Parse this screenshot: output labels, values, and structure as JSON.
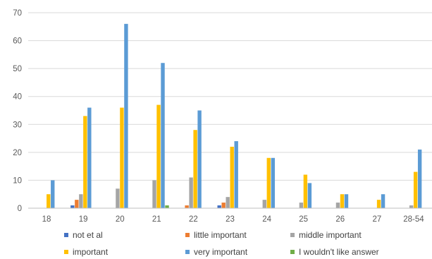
{
  "chart_data": {
    "type": "bar",
    "title": "",
    "xlabel": "",
    "ylabel": "",
    "ylim": [
      0,
      70
    ],
    "yticks": [
      0,
      10,
      20,
      30,
      40,
      50,
      60,
      70
    ],
    "grid": "horizontal",
    "legend_position": "bottom",
    "categories": [
      "18",
      "19",
      "20",
      "21",
      "22",
      "23",
      "24",
      "25",
      "26",
      "27",
      "28-54"
    ],
    "series": [
      {
        "name": "not et al",
        "color": "#4472C4",
        "values": [
          0,
          1,
          0,
          0,
          0,
          1,
          0,
          0,
          0,
          0,
          0
        ]
      },
      {
        "name": "little important",
        "color": "#ED7D31",
        "values": [
          0,
          3,
          0,
          0,
          1,
          2,
          0,
          0,
          0,
          0,
          0
        ]
      },
      {
        "name": "middle important",
        "color": "#A5A5A5",
        "values": [
          0,
          5,
          7,
          10,
          11,
          4,
          3,
          2,
          2,
          0,
          1
        ]
      },
      {
        "name": "important",
        "color": "#FFC000",
        "values": [
          5,
          33,
          36,
          37,
          28,
          22,
          18,
          12,
          5,
          3,
          13
        ]
      },
      {
        "name": "very important",
        "color": "#5B9BD5",
        "values": [
          10,
          36,
          66,
          52,
          35,
          24,
          18,
          9,
          5,
          5,
          21
        ]
      },
      {
        "name": "I wouldn't like answer",
        "color": "#70AD47",
        "values": [
          0,
          0,
          0,
          1,
          0,
          0,
          0,
          0,
          0,
          0,
          0
        ]
      }
    ]
  }
}
